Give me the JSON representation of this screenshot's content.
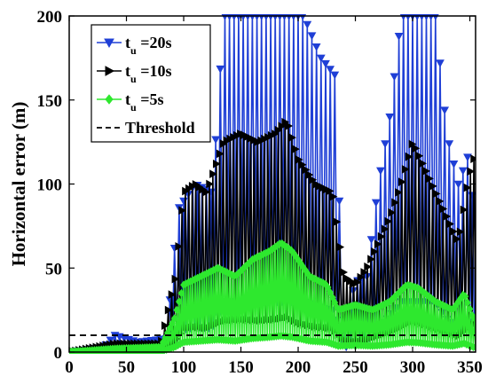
{
  "chart_data": {
    "type": "line",
    "ylabel": "Horizontal error (m)",
    "xlabel": "",
    "xlim": [
      0,
      355
    ],
    "ylim": [
      0,
      200
    ],
    "x_ticks": [
      0,
      50,
      100,
      150,
      200,
      250,
      300,
      350
    ],
    "y_ticks": [
      0,
      50,
      100,
      150,
      200
    ],
    "grid": false,
    "legend_position": "top-left",
    "threshold": {
      "name": "Threshold",
      "value": 10,
      "color": "#000000",
      "style": "dashed"
    },
    "series": [
      {
        "name": "20s",
        "legend_prefix": "t",
        "legend_sub": "u",
        "color": "#1f3fd6",
        "marker": "triangle-down",
        "step": 4,
        "start": 2,
        "peaks": [
          [
            0,
            0
          ],
          [
            30,
            3
          ],
          [
            40,
            10
          ],
          [
            60,
            6
          ],
          [
            85,
            8
          ],
          [
            95,
            85
          ],
          [
            110,
            100
          ],
          [
            125,
            95
          ],
          [
            135,
            200
          ],
          [
            145,
            200
          ],
          [
            160,
            200
          ],
          [
            175,
            200
          ],
          [
            190,
            200
          ],
          [
            205,
            200
          ],
          [
            220,
            175
          ],
          [
            232,
            165
          ],
          [
            240,
            15
          ],
          [
            250,
            42
          ],
          [
            260,
            45
          ],
          [
            270,
            100
          ],
          [
            280,
            140
          ],
          [
            290,
            200
          ],
          [
            300,
            200
          ],
          [
            310,
            200
          ],
          [
            320,
            200
          ],
          [
            330,
            130
          ],
          [
            340,
            100
          ],
          [
            350,
            120
          ],
          [
            353,
            80
          ]
        ]
      },
      {
        "name": "10s",
        "legend_prefix": "t",
        "legend_sub": "u",
        "color": "#000000",
        "marker": "triangle-right",
        "step": 3,
        "start": 1,
        "peaks": [
          [
            0,
            0
          ],
          [
            40,
            5
          ],
          [
            80,
            5
          ],
          [
            93,
            45
          ],
          [
            100,
            95
          ],
          [
            110,
            100
          ],
          [
            120,
            95
          ],
          [
            135,
            125
          ],
          [
            150,
            130
          ],
          [
            165,
            125
          ],
          [
            180,
            130
          ],
          [
            190,
            138
          ],
          [
            200,
            115
          ],
          [
            215,
            100
          ],
          [
            230,
            95
          ],
          [
            240,
            45
          ],
          [
            250,
            40
          ],
          [
            260,
            50
          ],
          [
            270,
            65
          ],
          [
            280,
            80
          ],
          [
            290,
            100
          ],
          [
            300,
            125
          ],
          [
            310,
            110
          ],
          [
            320,
            95
          ],
          [
            330,
            80
          ],
          [
            340,
            65
          ],
          [
            348,
            100
          ],
          [
            353,
            115
          ]
        ]
      },
      {
        "name": "5s",
        "legend_prefix": "t",
        "legend_sub": "u",
        "color": "#2ee82e",
        "marker": "diamond",
        "step": 2,
        "start": 1,
        "peaks": [
          [
            0,
            0
          ],
          [
            40,
            2
          ],
          [
            80,
            3
          ],
          [
            92,
            20
          ],
          [
            100,
            40
          ],
          [
            115,
            45
          ],
          [
            130,
            50
          ],
          [
            145,
            45
          ],
          [
            160,
            55
          ],
          [
            175,
            60
          ],
          [
            185,
            65
          ],
          [
            195,
            60
          ],
          [
            210,
            45
          ],
          [
            225,
            40
          ],
          [
            235,
            25
          ],
          [
            250,
            28
          ],
          [
            265,
            25
          ],
          [
            280,
            30
          ],
          [
            295,
            40
          ],
          [
            305,
            38
          ],
          [
            320,
            30
          ],
          [
            335,
            25
          ],
          [
            345,
            35
          ],
          [
            353,
            20
          ]
        ]
      }
    ]
  }
}
